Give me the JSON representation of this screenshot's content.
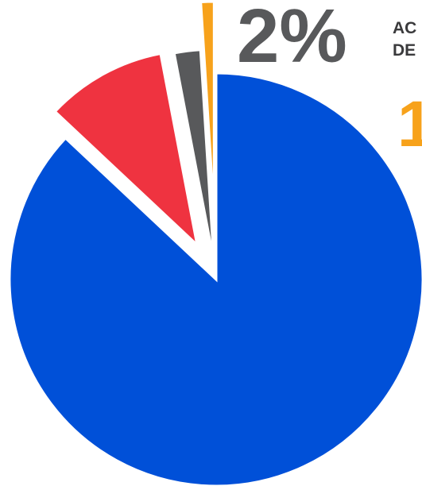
{
  "chart_data": {
    "type": "pie",
    "values": [
      87,
      10,
      2,
      1
    ],
    "colors": [
      "#0050d8",
      "#ef3340",
      "#58595b",
      "#f7a21b"
    ],
    "annotations": [
      "2%",
      "AC",
      "DE",
      "1"
    ]
  }
}
